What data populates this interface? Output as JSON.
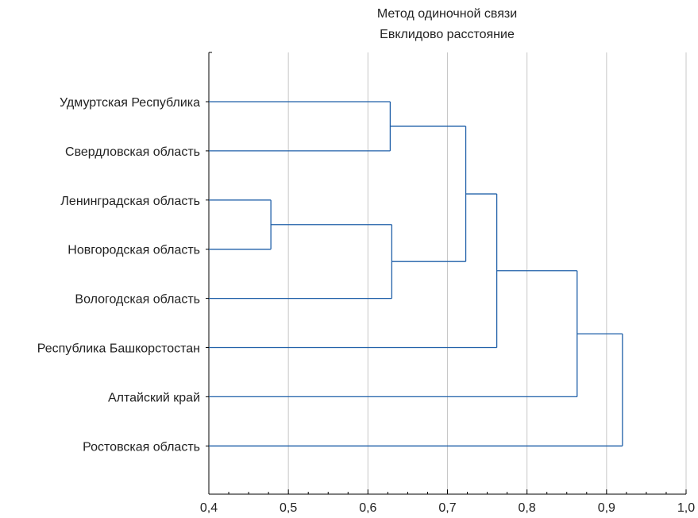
{
  "chart_data": {
    "type": "dendrogram",
    "title": "Метод одиночной связи",
    "subtitle": "Евклидово расстояние",
    "xlabel": "",
    "ylabel": "",
    "xlim": [
      0.4,
      1.0
    ],
    "x_ticks": [
      0.4,
      0.5,
      0.6,
      0.7,
      0.8,
      0.9,
      1.0
    ],
    "x_tick_labels": [
      "0,4",
      "0,5",
      "0,6",
      "0,7",
      "0,8",
      "0,9",
      "1,0"
    ],
    "grid": "vertical",
    "leaves": [
      "Удмуртская Республика",
      "Свердловская область",
      "Ленинградская область",
      "Новгородская область",
      "Вологодская область",
      "Республика Башкорстостан",
      "Алтайский край",
      "Ростовская область"
    ],
    "merges": [
      {
        "id": "c1",
        "left": "Ленинградская область",
        "right": "Новгородская область",
        "distance": 0.478
      },
      {
        "id": "c2",
        "left": "Удмуртская Республика",
        "right": "Свердловская область",
        "distance": 0.628
      },
      {
        "id": "c3",
        "left": "c1",
        "right": "Вологодская область",
        "distance": 0.63
      },
      {
        "id": "c4",
        "left": "c2",
        "right": "c3",
        "distance": 0.723
      },
      {
        "id": "c5",
        "left": "c4",
        "right": "Республика Башкорстостан",
        "distance": 0.762
      },
      {
        "id": "c6",
        "left": "c5",
        "right": "Алтайский край",
        "distance": 0.863
      },
      {
        "id": "c7",
        "left": "c6",
        "right": "Ростовская область",
        "distance": 0.92
      }
    ],
    "line_color": "#1f5fa8",
    "grid_color": "#c8c8c8"
  }
}
